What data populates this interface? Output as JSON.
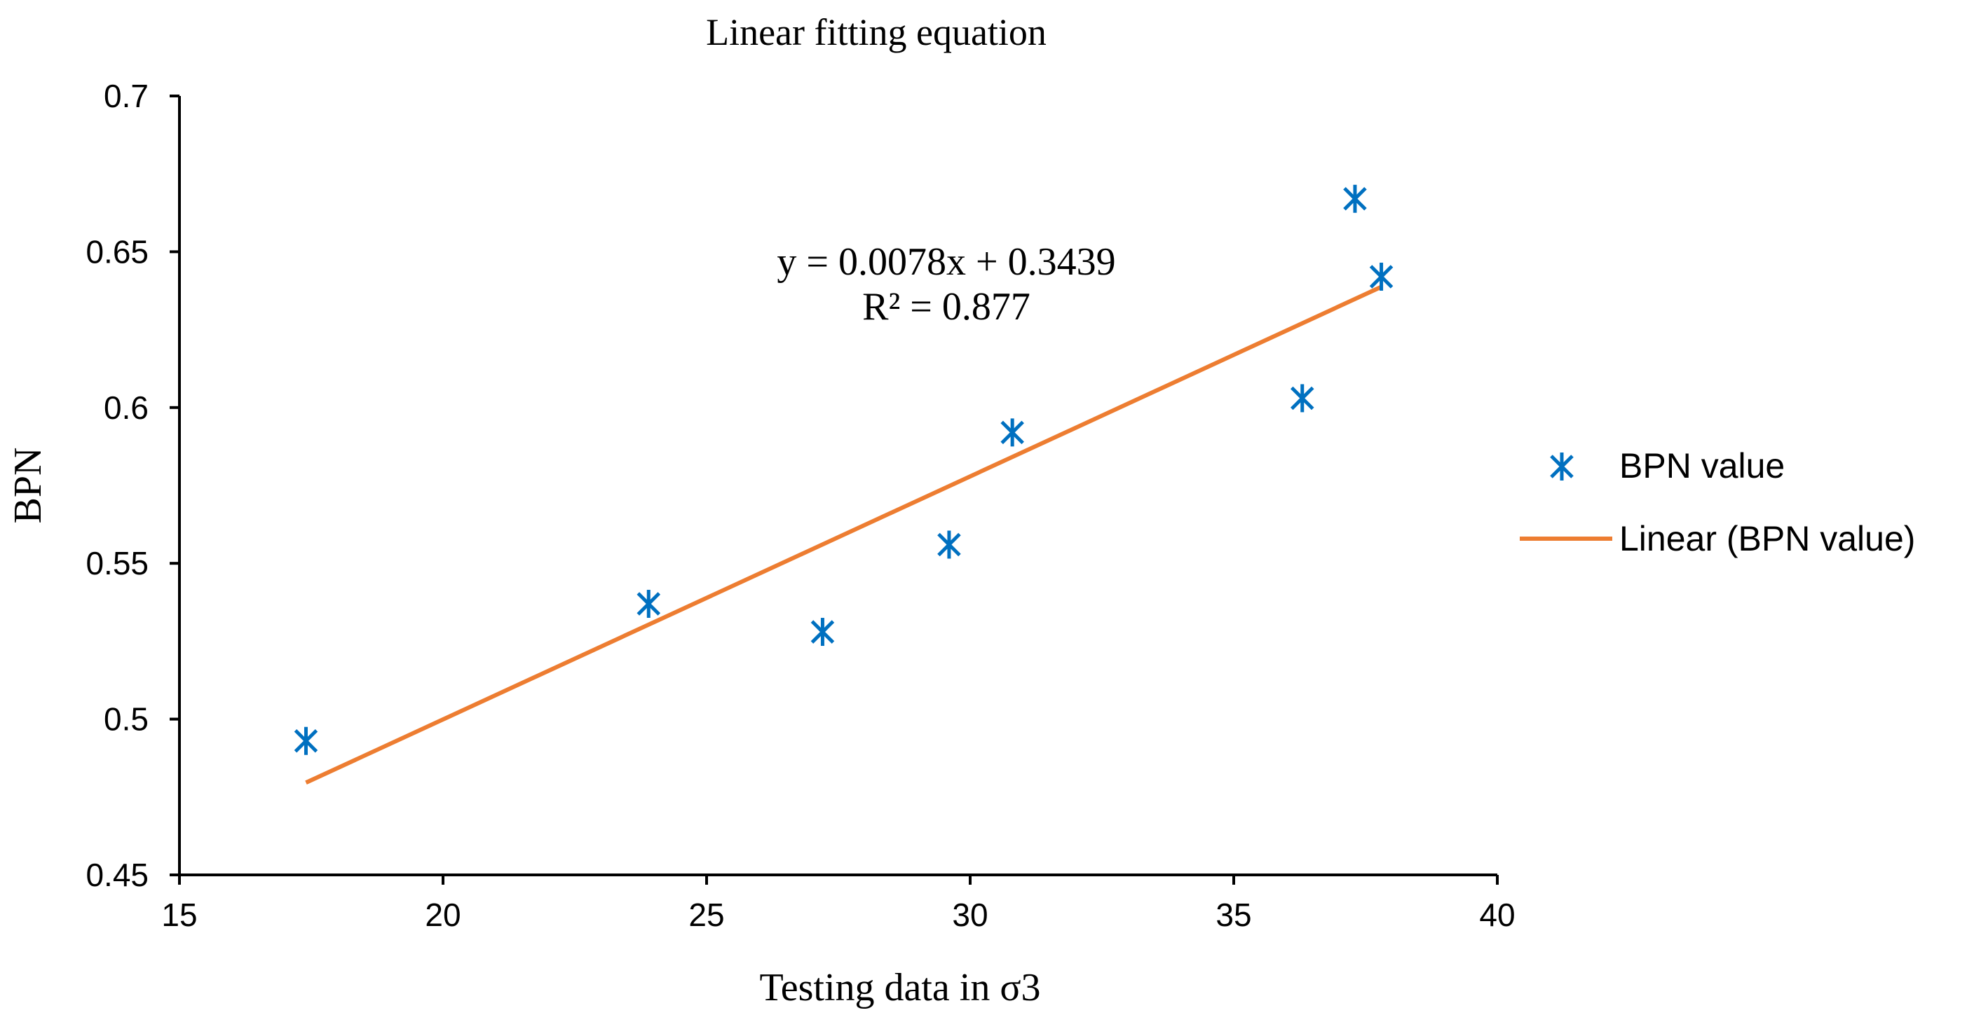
{
  "chart_data": {
    "type": "scatter",
    "title": "Linear fitting equation",
    "xlabel": "Testing data in σ3",
    "ylabel": "BPN",
    "xlim": [
      15,
      40
    ],
    "ylim": [
      0.45,
      0.7
    ],
    "xticks": [
      "15",
      "20",
      "25",
      "30",
      "35",
      "40"
    ],
    "yticks": [
      "0.45",
      "0.5",
      "0.55",
      "0.6",
      "0.65",
      "0.7"
    ],
    "grid": false,
    "legend_position": "right",
    "series": [
      {
        "name": "BPN value",
        "kind": "scatter",
        "marker": "asterisk",
        "color": "#0070C0",
        "x": [
          17.4,
          23.9,
          27.2,
          29.6,
          30.8,
          36.3,
          37.3,
          37.8
        ],
        "y": [
          0.493,
          0.537,
          0.528,
          0.556,
          0.592,
          0.603,
          0.667,
          0.642
        ]
      },
      {
        "name": "Linear (BPN value)",
        "kind": "trendline",
        "color": "#ED7D31",
        "slope": 0.0078,
        "intercept": 0.3439,
        "x_range": [
          17.4,
          37.8
        ]
      }
    ],
    "annotation": {
      "equation": "y = 0.0078x + 0.3439",
      "r_squared": "R² = 0.877"
    }
  }
}
